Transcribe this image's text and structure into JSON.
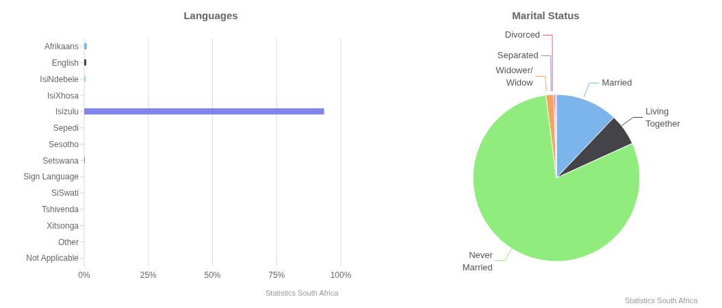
{
  "chart_data": [
    {
      "type": "bar",
      "orientation": "horizontal",
      "title": "Languages",
      "categories": [
        "Afrikaans",
        "English",
        "IsiNdebele",
        "IsiXhosa",
        "Isizulu",
        "Sepedi",
        "Sesotho",
        "Setswana",
        "Sign Language",
        "SiSwati",
        "Tshivenda",
        "Xitsonga",
        "Other",
        "Not Applicable"
      ],
      "values": [
        1,
        0.8,
        0.5,
        0,
        93.5,
        0,
        0,
        0.3,
        0,
        0,
        0,
        0,
        0,
        0
      ],
      "colors": [
        "#7cb5ec",
        "#434348",
        "#90ed7d",
        "#f7a35c",
        "#8085e9",
        "#f15c80",
        "#e4d354",
        "#8085e9",
        "#f45b5b",
        "#91e8e1",
        "#7cb5ec",
        "#434348",
        "#90ed7d",
        "#f7a35c"
      ],
      "xlim": [
        0,
        100
      ],
      "xticks": [
        {
          "value": 0,
          "label": "0%"
        },
        {
          "value": 25,
          "label": "25%"
        },
        {
          "value": 50,
          "label": "50%"
        },
        {
          "value": 75,
          "label": "75%"
        },
        {
          "value": 100,
          "label": "100%"
        }
      ],
      "grid": "x",
      "annotations": [
        "Statistics South Africa"
      ]
    },
    {
      "type": "pie",
      "title": "Marital Status",
      "categories": [
        "Married",
        "Living Together",
        "Never Married",
        "Widower/ Widow",
        "Separated",
        "Divorced"
      ],
      "values": [
        12.1,
        6.1,
        79.8,
        1.5,
        0.3,
        0.2
      ],
      "colors": [
        "#7cb5ec",
        "#434348",
        "#90ed7d",
        "#f7a35c",
        "#8085e9",
        "#f15c80"
      ],
      "annotations": [
        "Statistics South Africa"
      ]
    }
  ]
}
